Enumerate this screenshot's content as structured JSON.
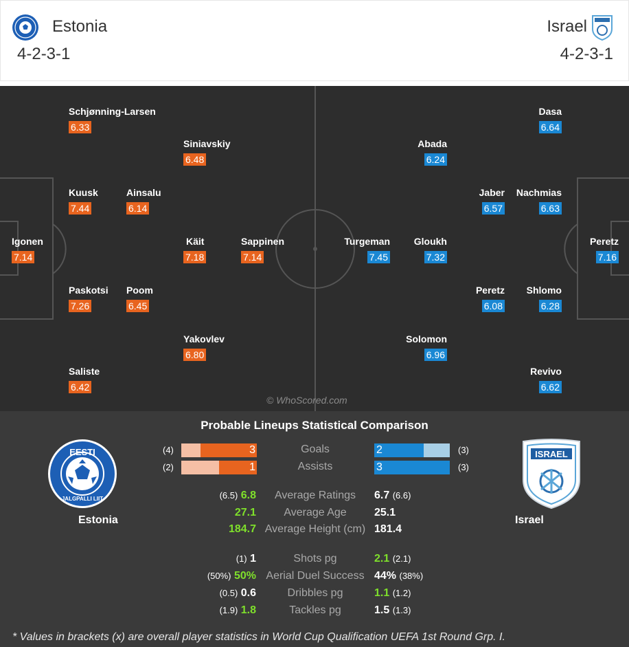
{
  "home": {
    "name": "Estonia",
    "formation": "4-2-3-1",
    "crest_text_top": "EESTI",
    "crest_text_bottom": "JALGPALLI LIIT",
    "players": [
      {
        "name": "Schjønning-Larsen",
        "rating": "6.33"
      },
      {
        "name": "Siniavskiy",
        "rating": "6.48"
      },
      {
        "name": "Kuusk",
        "rating": "7.44"
      },
      {
        "name": "Ainsalu",
        "rating": "6.14"
      },
      {
        "name": "Igonen",
        "rating": "7.14"
      },
      {
        "name": "Käit",
        "rating": "7.18"
      },
      {
        "name": "Sappinen",
        "rating": "7.14"
      },
      {
        "name": "Paskotsi",
        "rating": "7.26"
      },
      {
        "name": "Poom",
        "rating": "6.45"
      },
      {
        "name": "Yakovlev",
        "rating": "6.80"
      },
      {
        "name": "Saliste",
        "rating": "6.42"
      }
    ]
  },
  "away": {
    "name": "Israel",
    "formation": "4-2-3-1",
    "crest_text": "ISRAEL",
    "players": [
      {
        "name": "Dasa",
        "rating": "6.64"
      },
      {
        "name": "Abada",
        "rating": "6.24"
      },
      {
        "name": "Jaber",
        "rating": "6.57"
      },
      {
        "name": "Nachmias",
        "rating": "6.63"
      },
      {
        "name": "Turgeman",
        "rating": "7.45"
      },
      {
        "name": "Gloukh",
        "rating": "7.32"
      },
      {
        "name": "Peretz",
        "rating": "7.16"
      },
      {
        "name": "Peretz",
        "rating": "6.08"
      },
      {
        "name": "Shlomo",
        "rating": "6.28"
      },
      {
        "name": "Solomon",
        "rating": "6.96"
      },
      {
        "name": "Revivo",
        "rating": "6.62"
      }
    ]
  },
  "watermark": "© WhoScored.com",
  "comparison": {
    "title": "Probable Lineups Statistical Comparison",
    "bars": [
      {
        "label": "Goals",
        "home": 3,
        "home_bracket": "(4)",
        "away": 2,
        "away_bracket": "(3)",
        "home_fill": 0.75,
        "away_fill": 0.65
      },
      {
        "label": "Assists",
        "home": 1,
        "home_bracket": "(2)",
        "away": 3,
        "away_bracket": "(3)",
        "home_fill": 0.5,
        "away_fill": 1.0
      }
    ],
    "stats": [
      {
        "label": "Average Ratings",
        "home_bracket": "(6.5)",
        "home": "6.8",
        "away": "6.7",
        "away_bracket": "(6.6)",
        "best": "home"
      },
      {
        "label": "Average Age",
        "home_bracket": "",
        "home": "27.1",
        "away": "25.1",
        "away_bracket": "",
        "best": "home"
      },
      {
        "label": "Average Height (cm)",
        "home_bracket": "",
        "home": "184.7",
        "away": "181.4",
        "away_bracket": "",
        "best": "home"
      },
      {
        "label": "Shots pg",
        "home_bracket": "(1)",
        "home": "1",
        "away": "2.1",
        "away_bracket": "(2.1)",
        "best": "away"
      },
      {
        "label": "Aerial Duel Success",
        "home_bracket": "(50%)",
        "home": "50%",
        "away": "44%",
        "away_bracket": "(38%)",
        "best": "home"
      },
      {
        "label": "Dribbles pg",
        "home_bracket": "(0.5)",
        "home": "0.6",
        "away": "1.1",
        "away_bracket": "(1.2)",
        "best": "away"
      },
      {
        "label": "Tackles pg",
        "home_bracket": "(1.9)",
        "home": "1.8",
        "away": "1.5",
        "away_bracket": "(1.3)",
        "best": "home"
      }
    ],
    "footnote": "* Values in brackets (x) are overall player statistics in World Cup Qualification UEFA 1st Round Grp. I."
  },
  "colors": {
    "home_accent": "#e8641f",
    "away_accent": "#1a88d4",
    "best_value": "#7fe02b",
    "pitch": "#2d2d2d"
  }
}
